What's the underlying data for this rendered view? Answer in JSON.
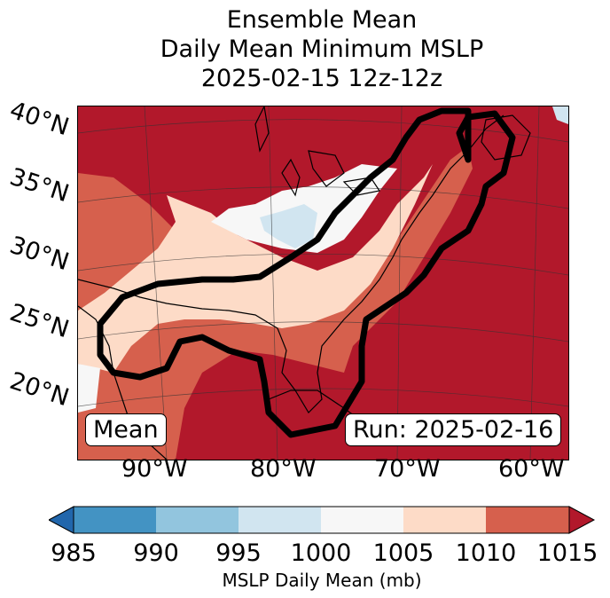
{
  "title": {
    "line1": "Ensemble Mean",
    "line2": "Daily Mean Minimum MSLP",
    "line3": "2025-02-15 12z-12z"
  },
  "map": {
    "lat_labels": [
      "40°N",
      "35°N",
      "30°N",
      "25°N",
      "20°N"
    ],
    "lon_labels": [
      "90°W",
      "80°W",
      "70°W",
      "60°W"
    ],
    "mean_label": "Mean",
    "run_label": "Run: 2025-02-16",
    "colors": {
      "c985": "#2166ac",
      "c990": "#4393c3",
      "c995": "#92c5de",
      "c1000": "#d1e5f0",
      "c1005": "#f7f7f7",
      "c1010": "#fddbc7",
      "c1015": "#d6604d",
      "over": "#b2182b"
    }
  },
  "colorbar": {
    "ticks": [
      "985",
      "990",
      "995",
      "1000",
      "1005",
      "1010",
      "1015"
    ],
    "label": "MSLP Daily Mean (mb)",
    "colors": [
      "#4393c3",
      "#92c5de",
      "#d1e5f0",
      "#f7f7f7",
      "#fddbc7",
      "#d6604d"
    ],
    "under_color": "#2166ac",
    "over_color": "#b2182b"
  }
}
